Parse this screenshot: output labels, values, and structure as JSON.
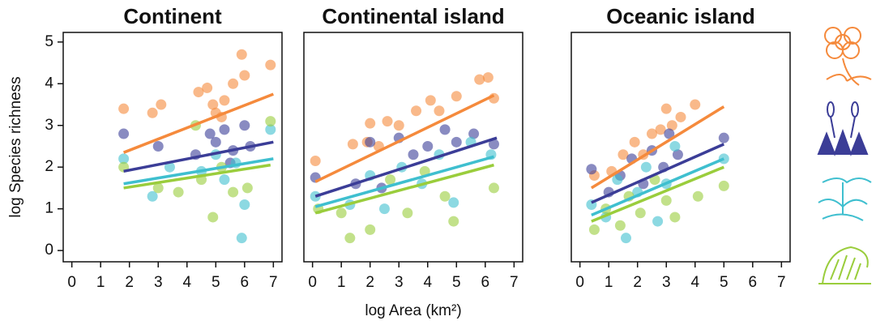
{
  "chart_data": [
    {
      "type": "scatter",
      "title": "Continent",
      "y_label": "log Species richness",
      "xlim": [
        -0.3,
        7.3
      ],
      "ylim": [
        -0.27,
        5.23
      ],
      "xticks": [
        0,
        1,
        2,
        3,
        4,
        5,
        6,
        7
      ],
      "yticks": [
        0,
        1,
        2,
        3,
        4,
        5
      ],
      "alpha": 0.6,
      "series": [
        {
          "color": "#f58a3c",
          "x": [
            1.8,
            2.8,
            3.1,
            4.4,
            4.7,
            5.0,
            5.3,
            5.6,
            5.9,
            6.0,
            6.9,
            5.2,
            4.9
          ],
          "values": [
            3.4,
            3.3,
            3.5,
            3.8,
            3.9,
            3.3,
            3.6,
            4.0,
            4.7,
            4.2,
            4.45,
            3.2,
            3.5
          ],
          "fit": {
            "x": [
              1.8,
              7.0
            ],
            "values": [
              2.35,
              3.75
            ]
          }
        },
        {
          "color": "#3b3d97",
          "x": [
            1.8,
            3.0,
            4.3,
            4.8,
            5.0,
            5.3,
            5.6,
            6.0,
            6.2,
            5.5
          ],
          "values": [
            2.8,
            2.5,
            2.3,
            2.8,
            2.6,
            2.9,
            2.4,
            3.0,
            2.5,
            2.1
          ],
          "fit": {
            "x": [
              1.8,
              7.0
            ],
            "values": [
              1.9,
              2.6
            ]
          }
        },
        {
          "color": "#3fbfcf",
          "x": [
            1.8,
            2.8,
            3.4,
            4.5,
            5.0,
            5.3,
            5.7,
            5.9,
            6.0,
            6.9
          ],
          "values": [
            2.2,
            1.3,
            2.0,
            1.9,
            2.3,
            1.7,
            2.1,
            0.3,
            1.1,
            2.9
          ],
          "fit": {
            "x": [
              1.8,
              7.0
            ],
            "values": [
              1.6,
              2.2
            ]
          }
        },
        {
          "color": "#9acd3c",
          "x": [
            1.8,
            3.0,
            3.7,
            4.5,
            4.9,
            5.2,
            5.6,
            6.1,
            6.9,
            4.3
          ],
          "values": [
            2.0,
            1.5,
            1.4,
            1.7,
            0.8,
            2.0,
            1.4,
            1.5,
            3.1,
            3.0
          ],
          "fit": {
            "x": [
              1.8,
              6.9
            ],
            "values": [
              1.5,
              2.05
            ]
          }
        }
      ]
    },
    {
      "type": "scatter",
      "title": "Continental island",
      "x_label": "log Area (km²)",
      "xlim": [
        -0.3,
        7.3
      ],
      "ylim": [
        -0.27,
        5.23
      ],
      "xticks": [
        0,
        1,
        2,
        3,
        4,
        5,
        6,
        7
      ],
      "alpha": 0.6,
      "series": [
        {
          "color": "#f58a3c",
          "x": [
            0.1,
            1.4,
            1.9,
            2.0,
            2.3,
            2.6,
            3.0,
            3.6,
            4.1,
            4.4,
            5.0,
            5.8,
            6.1,
            6.3
          ],
          "values": [
            2.15,
            2.55,
            2.6,
            3.05,
            2.5,
            3.1,
            3.0,
            3.35,
            3.6,
            3.35,
            3.7,
            4.1,
            4.15,
            3.65
          ],
          "fit": {
            "x": [
              0.1,
              6.3
            ],
            "values": [
              1.65,
              3.72
            ]
          }
        },
        {
          "color": "#3b3d97",
          "x": [
            0.1,
            1.5,
            2.0,
            2.4,
            3.0,
            3.5,
            4.0,
            4.6,
            5.0,
            5.6,
            6.3
          ],
          "values": [
            1.75,
            1.6,
            2.6,
            1.5,
            2.7,
            2.3,
            2.5,
            2.9,
            2.6,
            2.8,
            2.55
          ],
          "fit": {
            "x": [
              0.1,
              6.4
            ],
            "values": [
              1.3,
              2.7
            ]
          }
        },
        {
          "color": "#3fbfcf",
          "x": [
            0.1,
            1.3,
            2.0,
            2.5,
            3.1,
            3.8,
            4.4,
            4.9,
            5.5,
            6.2
          ],
          "values": [
            1.3,
            1.1,
            1.8,
            1.0,
            2.0,
            1.6,
            2.3,
            1.15,
            2.6,
            2.3
          ],
          "fit": {
            "x": [
              0.1,
              6.3
            ],
            "values": [
              1.05,
              2.25
            ]
          }
        },
        {
          "color": "#9acd3c",
          "x": [
            0.2,
            1.0,
            1.3,
            2.0,
            2.7,
            3.3,
            3.9,
            4.6,
            4.9,
            6.3
          ],
          "values": [
            1.0,
            0.9,
            0.3,
            0.5,
            1.7,
            0.9,
            1.9,
            1.3,
            0.7,
            1.5
          ],
          "fit": {
            "x": [
              0.1,
              6.3
            ],
            "values": [
              0.9,
              2.05
            ]
          }
        }
      ]
    },
    {
      "type": "scatter",
      "title": "Oceanic island",
      "xlim": [
        -0.3,
        7.3
      ],
      "ylim": [
        -0.27,
        5.23
      ],
      "xticks": [
        0,
        1,
        2,
        3,
        4,
        5,
        6,
        7
      ],
      "alpha": 0.6,
      "series": [
        {
          "color": "#f58a3c",
          "x": [
            0.5,
            1.1,
            1.5,
            1.9,
            2.2,
            2.5,
            2.8,
            3.0,
            3.2,
            3.5,
            4.0
          ],
          "values": [
            1.8,
            1.9,
            2.3,
            2.6,
            2.3,
            2.8,
            2.9,
            3.4,
            3.0,
            3.2,
            3.5
          ],
          "fit": {
            "x": [
              0.4,
              5.0
            ],
            "values": [
              1.5,
              3.45
            ]
          }
        },
        {
          "color": "#3b3d97",
          "x": [
            0.4,
            1.0,
            1.4,
            1.8,
            2.2,
            2.5,
            2.9,
            3.1,
            3.4,
            5.0
          ],
          "values": [
            1.95,
            1.4,
            1.8,
            2.2,
            1.6,
            2.4,
            2.0,
            2.8,
            2.3,
            2.7
          ],
          "fit": {
            "x": [
              0.4,
              5.0
            ],
            "values": [
              1.15,
              2.55
            ]
          }
        },
        {
          "color": "#3fbfcf",
          "x": [
            0.4,
            0.9,
            1.3,
            1.6,
            2.0,
            2.3,
            2.7,
            3.0,
            3.3,
            5.0
          ],
          "values": [
            1.1,
            0.8,
            1.7,
            0.3,
            1.4,
            2.0,
            0.7,
            1.6,
            2.5,
            2.2
          ],
          "fit": {
            "x": [
              0.4,
              5.0
            ],
            "values": [
              0.85,
              2.2
            ]
          }
        },
        {
          "color": "#9acd3c",
          "x": [
            0.5,
            0.9,
            1.4,
            1.7,
            2.1,
            2.6,
            3.0,
            3.3,
            4.1,
            5.0
          ],
          "values": [
            0.5,
            1.0,
            0.6,
            1.3,
            0.9,
            1.7,
            1.2,
            0.8,
            1.3,
            1.55
          ],
          "fit": {
            "x": [
              0.4,
              5.0
            ],
            "values": [
              0.7,
              2.0
            ]
          }
        }
      ]
    }
  ]
}
